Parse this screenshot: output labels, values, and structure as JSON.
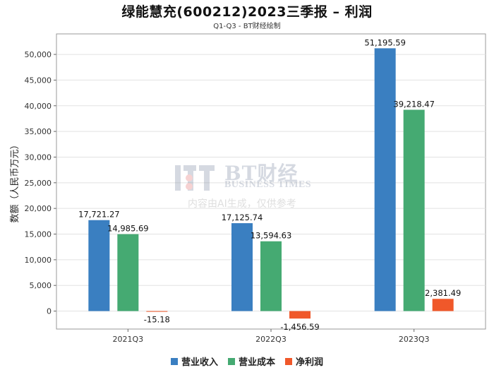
{
  "title": "绿能慧充(600212)2023三季报 – 利润",
  "subtitle": "Q1-Q3 - BT财经绘制",
  "watermark": {
    "brand": "BT财经",
    "brand_en": "BUSINESS TIMES",
    "note": "内容由AI生成，仅供参考"
  },
  "chart_data": {
    "type": "bar",
    "categories": [
      "2021Q3",
      "2022Q3",
      "2023Q3"
    ],
    "series": [
      {
        "name": "营业收入",
        "color": "#3a7fc1",
        "values": [
          17721.27,
          17125.74,
          51195.59
        ],
        "labels": [
          "17,721.27",
          "17,125.74",
          "51,195.59"
        ]
      },
      {
        "name": "营业成本",
        "color": "#45aa72",
        "values": [
          14985.69,
          13594.63,
          39218.47
        ],
        "labels": [
          "14,985.69",
          "13,594.63",
          "39,218.47"
        ]
      },
      {
        "name": "净利润",
        "color": "#f0582a",
        "values": [
          -15.18,
          -1456.59,
          2381.49
        ],
        "labels": [
          "-15.18",
          "-1,456.59",
          "2,381.49"
        ]
      }
    ],
    "ylabel": "数额（人民币万元）",
    "xlabel": "",
    "ylim": [
      -3500,
      54000
    ],
    "yticks": [
      0,
      5000,
      10000,
      15000,
      20000,
      25000,
      30000,
      35000,
      40000,
      45000,
      50000
    ],
    "ytick_labels": [
      "0",
      "5,000",
      "10,000",
      "15,000",
      "20,000",
      "25,000",
      "30,000",
      "35,000",
      "40,000",
      "45,000",
      "50,000"
    ],
    "grid": true,
    "legend": "bottom-center"
  }
}
